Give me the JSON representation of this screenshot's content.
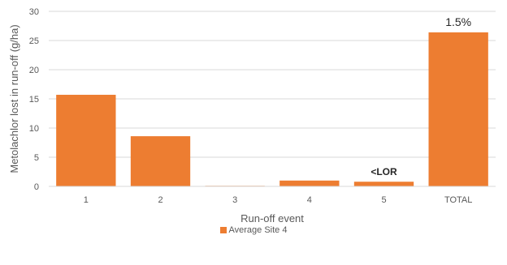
{
  "chart_data": {
    "type": "bar",
    "categories": [
      "1",
      "2",
      "3",
      "4",
      "5",
      "TOTAL"
    ],
    "series": [
      {
        "name": "Average Site 4",
        "values": [
          15.7,
          8.6,
          0.1,
          1.0,
          0.8,
          26.4
        ],
        "color": "#ED7D31"
      }
    ],
    "xlabel": "Run-off event",
    "ylabel": "Metolachlor  lost in run-off (g/ha)",
    "ylim": [
      0,
      30
    ],
    "yticks": [
      "0",
      "5",
      "10",
      "15",
      "20",
      "25",
      "30"
    ],
    "grid": true,
    "legend": "bottom",
    "annotations": [
      {
        "category": "5",
        "text": "<LOR"
      },
      {
        "category": "TOTAL",
        "text": "1.5%"
      }
    ]
  }
}
